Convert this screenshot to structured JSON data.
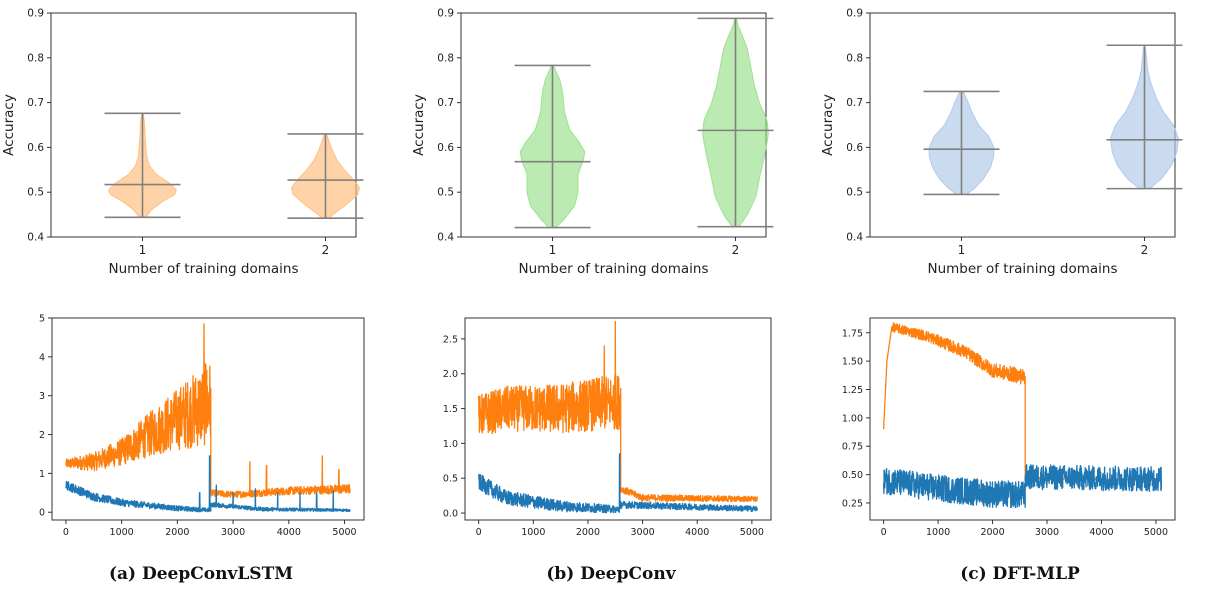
{
  "violins": [
    {
      "ylabel": "Accuracy",
      "xlabel": "Number of training domains",
      "ylim": [
        0.4,
        0.9
      ],
      "yticks": [
        0.4,
        0.5,
        0.6,
        0.7,
        0.8,
        0.9
      ],
      "ytick_labels": [
        "0.4",
        "0.5",
        "0.6",
        "0.7",
        "0.8",
        "0.9"
      ],
      "categories": [
        "1",
        "2"
      ],
      "color": "#ffbb78",
      "distributions": [
        {
          "min": 0.444,
          "median": 0.517,
          "max": 0.676,
          "profile": [
            [
              0.444,
              0.1
            ],
            [
              0.46,
              0.25
            ],
            [
              0.48,
              0.6
            ],
            [
              0.495,
              0.95
            ],
            [
              0.505,
              1.0
            ],
            [
              0.52,
              0.8
            ],
            [
              0.54,
              0.4
            ],
            [
              0.56,
              0.2
            ],
            [
              0.58,
              0.12
            ],
            [
              0.62,
              0.08
            ],
            [
              0.66,
              0.05
            ],
            [
              0.676,
              0.02
            ]
          ]
        },
        {
          "min": 0.442,
          "median": 0.527,
          "max": 0.63,
          "profile": [
            [
              0.442,
              0.1
            ],
            [
              0.455,
              0.3
            ],
            [
              0.475,
              0.65
            ],
            [
              0.495,
              0.95
            ],
            [
              0.51,
              1.0
            ],
            [
              0.53,
              0.8
            ],
            [
              0.55,
              0.55
            ],
            [
              0.57,
              0.35
            ],
            [
              0.59,
              0.22
            ],
            [
              0.61,
              0.12
            ],
            [
              0.63,
              0.03
            ]
          ]
        }
      ]
    },
    {
      "ylabel": "Accuracy",
      "xlabel": "Number of training domains",
      "ylim": [
        0.4,
        0.9
      ],
      "yticks": [
        0.4,
        0.5,
        0.6,
        0.7,
        0.8,
        0.9
      ],
      "ytick_labels": [
        "0.4",
        "0.5",
        "0.6",
        "0.7",
        "0.8",
        "0.9"
      ],
      "categories": [
        "1",
        "2"
      ],
      "color": "#98df8a",
      "distributions": [
        {
          "min": 0.421,
          "median": 0.568,
          "max": 0.783,
          "profile": [
            [
              0.421,
              0.1
            ],
            [
              0.44,
              0.35
            ],
            [
              0.47,
              0.65
            ],
            [
              0.5,
              0.75
            ],
            [
              0.54,
              0.75
            ],
            [
              0.57,
              0.9
            ],
            [
              0.59,
              0.95
            ],
            [
              0.61,
              0.8
            ],
            [
              0.64,
              0.5
            ],
            [
              0.68,
              0.35
            ],
            [
              0.72,
              0.3
            ],
            [
              0.75,
              0.22
            ],
            [
              0.77,
              0.1
            ],
            [
              0.783,
              0.03
            ]
          ]
        },
        {
          "min": 0.423,
          "median": 0.638,
          "max": 0.888,
          "profile": [
            [
              0.423,
              0.1
            ],
            [
              0.45,
              0.35
            ],
            [
              0.49,
              0.6
            ],
            [
              0.53,
              0.7
            ],
            [
              0.58,
              0.85
            ],
            [
              0.63,
              0.97
            ],
            [
              0.66,
              0.93
            ],
            [
              0.7,
              0.7
            ],
            [
              0.74,
              0.55
            ],
            [
              0.78,
              0.45
            ],
            [
              0.82,
              0.35
            ],
            [
              0.85,
              0.2
            ],
            [
              0.87,
              0.08
            ],
            [
              0.888,
              0.02
            ]
          ]
        }
      ]
    },
    {
      "ylabel": "Accuracy",
      "xlabel": "Number of training domains",
      "ylim": [
        0.4,
        0.9
      ],
      "yticks": [
        0.4,
        0.5,
        0.6,
        0.7,
        0.8,
        0.9
      ],
      "ytick_labels": [
        "0.4",
        "0.5",
        "0.6",
        "0.7",
        "0.8",
        "0.9"
      ],
      "categories": [
        "1",
        "2"
      ],
      "color": "#aec7e8",
      "distributions": [
        {
          "min": 0.495,
          "median": 0.596,
          "max": 0.725,
          "profile": [
            [
              0.495,
              0.15
            ],
            [
              0.51,
              0.4
            ],
            [
              0.53,
              0.65
            ],
            [
              0.555,
              0.85
            ],
            [
              0.58,
              0.95
            ],
            [
              0.6,
              0.95
            ],
            [
              0.625,
              0.8
            ],
            [
              0.65,
              0.5
            ],
            [
              0.68,
              0.3
            ],
            [
              0.7,
              0.2
            ],
            [
              0.725,
              0.05
            ]
          ]
        },
        {
          "min": 0.508,
          "median": 0.617,
          "max": 0.828,
          "profile": [
            [
              0.508,
              0.15
            ],
            [
              0.53,
              0.5
            ],
            [
              0.56,
              0.8
            ],
            [
              0.59,
              0.95
            ],
            [
              0.62,
              1.0
            ],
            [
              0.65,
              0.85
            ],
            [
              0.68,
              0.55
            ],
            [
              0.71,
              0.35
            ],
            [
              0.74,
              0.2
            ],
            [
              0.77,
              0.1
            ],
            [
              0.8,
              0.06
            ],
            [
              0.828,
              0.02
            ]
          ]
        }
      ]
    }
  ],
  "lines": [
    {
      "xlim": [
        -250,
        5350
      ],
      "ylim": [
        -0.2,
        5.0
      ],
      "xticks": [
        0,
        1000,
        2000,
        3000,
        4000,
        5000
      ],
      "xtick_labels": [
        "0",
        "1000",
        "2000",
        "3000",
        "4000",
        "5000"
      ],
      "yticks": [
        0,
        1,
        2,
        3,
        4,
        5
      ],
      "ytick_labels": [
        "0",
        "1",
        "2",
        "3",
        "4",
        "5"
      ],
      "series": [
        {
          "color": "#ff7f0e",
          "segments": [
            {
              "x0": 0,
              "x1": 2600,
              "trend": [
                [
                  0,
                  1.25
                ],
                [
                  500,
                  1.3
                ],
                [
                  1000,
                  1.55
                ],
                [
                  1500,
                  2.0
                ],
                [
                  2000,
                  2.4
                ],
                [
                  2550,
                  2.8
                ]
              ],
              "noise": [
                [
                  0,
                  0.12
                ],
                [
                  1000,
                  0.35
                ],
                [
                  2000,
                  0.8
                ],
                [
                  2550,
                  1.1
                ]
              ],
              "spikes": [
                [
                  2480,
                  4.85
                ],
                [
                  2510,
                  3.8
                ]
              ]
            },
            {
              "x0": 2600,
              "x1": 5100,
              "trend": [
                [
                  2600,
                  0.5
                ],
                [
                  3000,
                  0.45
                ],
                [
                  4000,
                  0.55
                ],
                [
                  5100,
                  0.6
                ]
              ],
              "noise": [
                [
                  2600,
                  0.08
                ],
                [
                  5100,
                  0.12
                ]
              ],
              "spikes": [
                [
                  3300,
                  1.3
                ],
                [
                  3600,
                  1.2
                ],
                [
                  4600,
                  1.45
                ],
                [
                  4900,
                  1.1
                ]
              ]
            }
          ]
        },
        {
          "color": "#1f77b4",
          "segments": [
            {
              "x0": 0,
              "x1": 2600,
              "trend": [
                [
                  0,
                  0.7
                ],
                [
                  500,
                  0.4
                ],
                [
                  1000,
                  0.25
                ],
                [
                  2000,
                  0.1
                ],
                [
                  2600,
                  0.05
                ]
              ],
              "noise": [
                [
                  0,
                  0.12
                ],
                [
                  2600,
                  0.05
                ]
              ],
              "spikes": [
                [
                  2400,
                  0.5
                ],
                [
                  2580,
                  1.45
                ]
              ]
            },
            {
              "x0": 2600,
              "x1": 5100,
              "trend": [
                [
                  2600,
                  0.2
                ],
                [
                  3500,
                  0.08
                ],
                [
                  5100,
                  0.05
                ]
              ],
              "noise": [
                [
                  2600,
                  0.06
                ],
                [
                  5100,
                  0.03
                ]
              ],
              "spikes": [
                [
                  2700,
                  0.7
                ],
                [
                  3000,
                  0.5
                ],
                [
                  3400,
                  0.6
                ],
                [
                  3800,
                  0.5
                ],
                [
                  4200,
                  0.5
                ],
                [
                  4500,
                  0.5
                ],
                [
                  4800,
                  0.55
                ]
              ]
            }
          ]
        }
      ]
    },
    {
      "xlim": [
        -250,
        5350
      ],
      "ylim": [
        -0.1,
        2.8
      ],
      "xticks": [
        0,
        1000,
        2000,
        3000,
        4000,
        5000
      ],
      "xtick_labels": [
        "0",
        "1000",
        "2000",
        "3000",
        "4000",
        "5000"
      ],
      "yticks": [
        0.0,
        0.5,
        1.0,
        1.5,
        2.0,
        2.5
      ],
      "ytick_labels": [
        "0.0",
        "0.5",
        "1.0",
        "1.5",
        "2.0",
        "2.5"
      ],
      "series": [
        {
          "color": "#ff7f0e",
          "segments": [
            {
              "x0": 0,
              "x1": 2600,
              "trend": [
                [
                  0,
                  1.4
                ],
                [
                  500,
                  1.5
                ],
                [
                  1500,
                  1.5
                ],
                [
                  2550,
                  1.6
                ]
              ],
              "noise": [
                [
                  0,
                  0.3
                ],
                [
                  2550,
                  0.4
                ]
              ],
              "spikes": [
                [
                  2500,
                  2.75
                ],
                [
                  2300,
                  2.4
                ]
              ]
            },
            {
              "x0": 2600,
              "x1": 5100,
              "trend": [
                [
                  2600,
                  0.35
                ],
                [
                  3000,
                  0.22
                ],
                [
                  5100,
                  0.2
                ]
              ],
              "noise": [
                [
                  2600,
                  0.05
                ],
                [
                  5100,
                  0.04
                ]
              ],
              "spikes": []
            }
          ]
        },
        {
          "color": "#1f77b4",
          "segments": [
            {
              "x0": 0,
              "x1": 2600,
              "trend": [
                [
                  0,
                  0.45
                ],
                [
                  500,
                  0.22
                ],
                [
                  1500,
                  0.1
                ],
                [
                  2600,
                  0.05
                ]
              ],
              "noise": [
                [
                  0,
                  0.12
                ],
                [
                  2600,
                  0.05
                ]
              ],
              "spikes": [
                [
                  2580,
                  0.85
                ]
              ]
            },
            {
              "x0": 2600,
              "x1": 5100,
              "trend": [
                [
                  2600,
                  0.12
                ],
                [
                  5100,
                  0.06
                ]
              ],
              "noise": [
                [
                  2600,
                  0.05
                ],
                [
                  5100,
                  0.04
                ]
              ],
              "spikes": []
            }
          ]
        }
      ]
    },
    {
      "xlim": [
        -250,
        5350
      ],
      "ylim": [
        0.1,
        1.88
      ],
      "xticks": [
        0,
        1000,
        2000,
        3000,
        4000,
        5000
      ],
      "xtick_labels": [
        "0",
        "1000",
        "2000",
        "3000",
        "4000",
        "5000"
      ],
      "yticks": [
        0.25,
        0.5,
        0.75,
        1.0,
        1.25,
        1.5,
        1.75
      ],
      "ytick_labels": [
        "0.25",
        "0.50",
        "0.75",
        "1.00",
        "1.25",
        "1.50",
        "1.75"
      ],
      "series": [
        {
          "color": "#ff7f0e",
          "segments": [
            {
              "x0": 0,
              "x1": 2600,
              "start": [
                [
                  0,
                  0.9
                ],
                [
                  60,
                  1.5
                ],
                [
                  150,
                  1.8
                ]
              ],
              "trend": [
                [
                  150,
                  1.8
                ],
                [
                  800,
                  1.72
                ],
                [
                  1500,
                  1.58
                ],
                [
                  2000,
                  1.42
                ],
                [
                  2600,
                  1.36
                ]
              ],
              "noise": [
                [
                  150,
                  0.04
                ],
                [
                  2600,
                  0.07
                ]
              ],
              "spikes": []
            },
            {
              "x0": 2600,
              "x1": 5100,
              "trend": [
                [
                  2600,
                  0.47
                ],
                [
                  5100,
                  0.45
                ]
              ],
              "noise": [
                [
                  2600,
                  0.006
                ],
                [
                  5100,
                  0.004
                ]
              ],
              "spikes": []
            }
          ]
        },
        {
          "color": "#1f77b4",
          "segments": [
            {
              "x0": 0,
              "x1": 2600,
              "trend": [
                [
                  0,
                  0.45
                ],
                [
                  1000,
                  0.38
                ],
                [
                  2000,
                  0.33
                ],
                [
                  2600,
                  0.32
                ]
              ],
              "noise": [
                [
                  0,
                  0.12
                ],
                [
                  2600,
                  0.12
                ]
              ],
              "spikes": []
            },
            {
              "x0": 2600,
              "x1": 5100,
              "trend": [
                [
                  2600,
                  0.48
                ],
                [
                  5100,
                  0.46
                ]
              ],
              "noise": [
                [
                  2600,
                  0.11
                ],
                [
                  5100,
                  0.11
                ]
              ],
              "spikes": []
            }
          ]
        }
      ]
    }
  ],
  "captions": [
    "(a) DeepConvLSTM",
    "(b) DeepConv",
    "(c) DFT-MLP"
  ]
}
